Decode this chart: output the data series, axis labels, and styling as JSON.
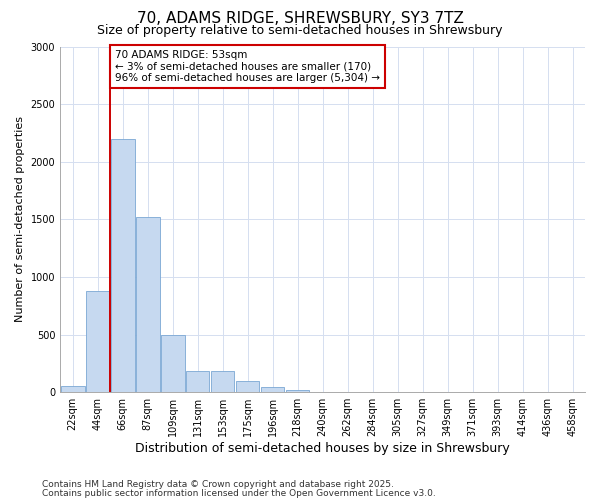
{
  "title": "70, ADAMS RIDGE, SHREWSBURY, SY3 7TZ",
  "subtitle": "Size of property relative to semi-detached houses in Shrewsbury",
  "xlabel": "Distribution of semi-detached houses by size in Shrewsbury",
  "ylabel": "Number of semi-detached properties",
  "categories": [
    "22sqm",
    "44sqm",
    "66sqm",
    "87sqm",
    "109sqm",
    "131sqm",
    "153sqm",
    "175sqm",
    "196sqm",
    "218sqm",
    "240sqm",
    "262sqm",
    "284sqm",
    "305sqm",
    "327sqm",
    "349sqm",
    "371sqm",
    "393sqm",
    "414sqm",
    "436sqm",
    "458sqm"
  ],
  "values": [
    50,
    880,
    2200,
    1520,
    500,
    185,
    185,
    100,
    45,
    20,
    3,
    0,
    0,
    0,
    0,
    0,
    0,
    0,
    0,
    0,
    0
  ],
  "bar_color": "#c6d9f0",
  "bar_edge_color": "#7ba7d4",
  "grid_color": "#d5dff0",
  "vline_x": 1.5,
  "vline_color": "#cc0000",
  "annot_text": "70 ADAMS RIDGE: 53sqm\n← 3% of semi-detached houses are smaller (170)\n96% of semi-detached houses are larger (5,304) →",
  "annot_edge_color": "#cc0000",
  "ylim": [
    0,
    3000
  ],
  "yticks": [
    0,
    500,
    1000,
    1500,
    2000,
    2500,
    3000
  ],
  "bg_color": "#ffffff",
  "plot_bg_color": "#ffffff",
  "title_fontsize": 11,
  "subtitle_fontsize": 9,
  "xlabel_fontsize": 9,
  "ylabel_fontsize": 8,
  "tick_fontsize": 7,
  "annot_fontsize": 7.5,
  "footer1": "Contains HM Land Registry data © Crown copyright and database right 2025.",
  "footer2": "Contains public sector information licensed under the Open Government Licence v3.0.",
  "footer_fontsize": 6.5
}
